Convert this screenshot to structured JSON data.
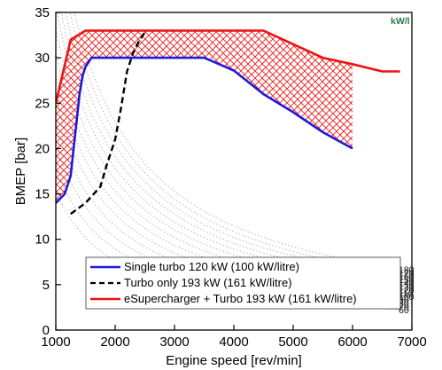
{
  "chart_data": {
    "type": "line",
    "title": "",
    "xlabel": "Engine speed [rev/min]",
    "ylabel": "BMEP [bar]",
    "xlim": [
      1000,
      7000
    ],
    "ylim": [
      0,
      35
    ],
    "xticks": [
      1000,
      2000,
      3000,
      4000,
      5000,
      6000,
      7000
    ],
    "yticks": [
      0,
      5,
      10,
      15,
      20,
      25,
      30,
      35
    ],
    "grid": false,
    "legend_position": "bottom-center",
    "series": [
      {
        "name": "Single turbo 120 kW (100 kW/litre)",
        "color": "#1a1adc",
        "style": "solid",
        "x": [
          1000,
          1150,
          1250,
          1300,
          1350,
          1400,
          1450,
          1500,
          1600,
          2000,
          3000,
          3500,
          4000,
          4500,
          5000,
          5500,
          6000
        ],
        "y": [
          14,
          15,
          17,
          20,
          23,
          26,
          28,
          29,
          30,
          30,
          30,
          30,
          28.6,
          26,
          24,
          21.8,
          20
        ]
      },
      {
        "name": "Turbo only 193 kW (161 kW/litre)",
        "color": "#000000",
        "style": "dashed",
        "x": [
          1250,
          1500,
          1750,
          1850,
          2000,
          2100,
          2200,
          2300,
          2400,
          2500
        ],
        "y": [
          12.8,
          14,
          15.8,
          18,
          21,
          24.5,
          28.5,
          30.5,
          31.8,
          32.8
        ]
      },
      {
        "name": "eSupercharger + Turbo 193 kW (161 kW/litre)",
        "color": "#ee1111",
        "style": "solid",
        "x": [
          1000,
          1250,
          1500,
          2000,
          3000,
          4000,
          4500,
          5000,
          5500,
          6000,
          6500,
          6800
        ],
        "y": [
          25,
          32,
          33,
          33,
          33,
          33,
          33,
          31.5,
          30,
          29.3,
          28.5,
          28.5
        ]
      }
    ],
    "power_contours": {
      "unit": "kW/l",
      "levels": [
        180,
        170,
        160,
        150,
        140,
        130,
        120,
        110,
        100,
        90,
        80,
        70,
        60
      ]
    }
  }
}
